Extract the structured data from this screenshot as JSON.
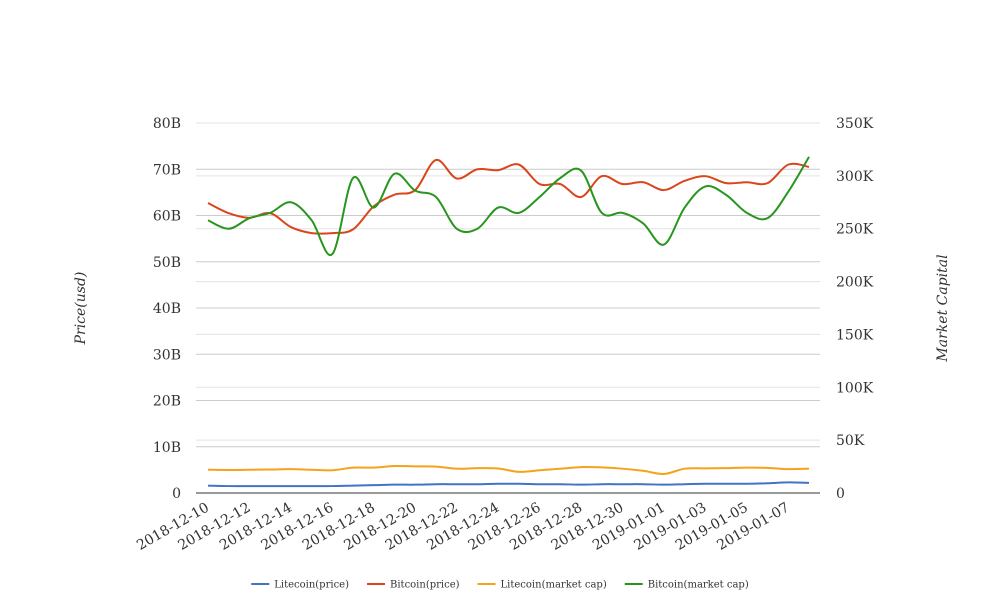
{
  "chart_data": {
    "type": "line",
    "x": [
      "2018-12-10",
      "2018-12-11",
      "2018-12-12",
      "2018-12-13",
      "2018-12-14",
      "2018-12-15",
      "2018-12-16",
      "2018-12-17",
      "2018-12-18",
      "2018-12-19",
      "2018-12-20",
      "2018-12-21",
      "2018-12-22",
      "2018-12-23",
      "2018-12-24",
      "2018-12-25",
      "2018-12-26",
      "2018-12-27",
      "2018-12-28",
      "2018-12-29",
      "2018-12-30",
      "2018-12-31",
      "2019-01-01",
      "2019-01-02",
      "2019-01-03",
      "2019-01-04",
      "2019-01-05",
      "2019-01-06",
      "2019-01-07",
      "2019-01-08"
    ],
    "x_tick_labels": [
      "2018-12-10",
      "2018-12-12",
      "2018-12-14",
      "2018-12-16",
      "2018-12-18",
      "2018-12-20",
      "2018-12-22",
      "2018-12-24",
      "2018-12-26",
      "2018-12-28",
      "2018-12-30",
      "2019-01-01",
      "2019-01-03",
      "2019-01-05",
      "2019-01-07"
    ],
    "y_left": {
      "label": "Price(usd)",
      "ylim": [
        0,
        80000000000
      ],
      "tick_values": [
        0,
        10000000000,
        20000000000,
        30000000000,
        40000000000,
        50000000000,
        60000000000,
        70000000000,
        80000000000
      ],
      "tick_labels": [
        "0",
        "10B",
        "20B",
        "30B",
        "40B",
        "50B",
        "60B",
        "70B",
        "80B"
      ]
    },
    "y_right": {
      "label": "Market Capital",
      "ylim": [
        0,
        350000
      ],
      "tick_values": [
        0,
        50000,
        100000,
        150000,
        200000,
        250000,
        300000,
        350000
      ],
      "tick_labels": [
        "0",
        "50K",
        "100K",
        "150K",
        "200K",
        "250K",
        "300K",
        "350K"
      ]
    },
    "grid": true,
    "legend_position": "bottom-center",
    "series": [
      {
        "name": "Litecoin(price)",
        "axis": "left",
        "color": "#4472c4",
        "values": [
          1600000000.0,
          1500000000.0,
          1500000000.0,
          1500000000.0,
          1500000000.0,
          1500000000.0,
          1500000000.0,
          1600000000.0,
          1700000000.0,
          1800000000.0,
          1800000000.0,
          1900000000.0,
          1900000000.0,
          1900000000.0,
          2000000000.0,
          2000000000.0,
          1900000000.0,
          1900000000.0,
          1800000000.0,
          1900000000.0,
          1900000000.0,
          1900000000.0,
          1800000000.0,
          1900000000.0,
          2000000000.0,
          2000000000.0,
          2000000000.0,
          2100000000.0,
          2300000000.0,
          2200000000.0
        ]
      },
      {
        "name": "Bitcoin(price)",
        "axis": "left",
        "color": "#d9461b",
        "values": [
          62700000000.0,
          60500000000.0,
          59500000000.0,
          60500000000.0,
          57500000000.0,
          56200000000.0,
          56200000000.0,
          57000000000.0,
          62000000000.0,
          64500000000.0,
          65500000000.0,
          72000000000.0,
          68000000000.0,
          70000000000.0,
          69800000000.0,
          71000000000.0,
          66800000000.0,
          66800000000.0,
          64000000000.0,
          68500000000.0,
          66800000000.0,
          67200000000.0,
          65500000000.0,
          67500000000.0,
          68500000000.0,
          67000000000.0,
          67200000000.0,
          67000000000.0,
          71000000000.0,
          70500000000.0
        ]
      },
      {
        "name": "Litecoin(market cap)",
        "axis": "right",
        "color": "#f5a31a",
        "values": [
          22000,
          21800,
          22000,
          22200,
          22600,
          22000,
          21500,
          24000,
          24000,
          25500,
          25200,
          25000,
          23000,
          23500,
          23200,
          20000,
          21500,
          23000,
          24500,
          24200,
          23000,
          21000,
          18000,
          23000,
          23300,
          23500,
          24000,
          23800,
          22600,
          23000
        ]
      },
      {
        "name": "Bitcoin(market cap)",
        "axis": "right",
        "color": "#28961e",
        "values": [
          258000,
          250000,
          260000,
          265000,
          275000,
          258000,
          226000,
          298000,
          270000,
          302000,
          286000,
          280000,
          250000,
          250000,
          270000,
          265000,
          280000,
          298000,
          305000,
          265000,
          265000,
          255000,
          235000,
          270000,
          290000,
          282000,
          265000,
          260000,
          285000,
          318000
        ]
      }
    ]
  }
}
